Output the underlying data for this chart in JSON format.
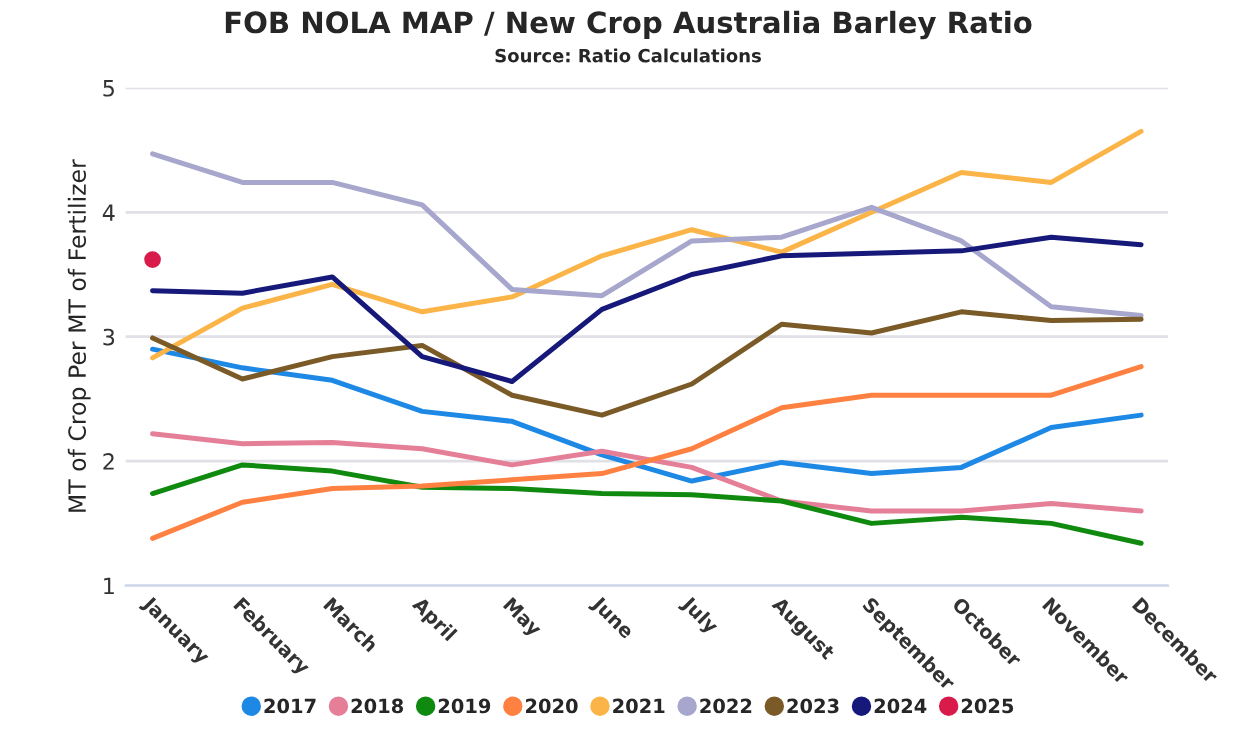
{
  "chart_data": {
    "type": "line",
    "title": "FOB NOLA MAP / New Crop Australia Barley Ratio",
    "subtitle": "Source: Ratio Calculations",
    "ylabel": "MT of Crop Per MT of Fertilizer",
    "categories": [
      "January",
      "February",
      "March",
      "April",
      "May",
      "June",
      "July",
      "August",
      "September",
      "October",
      "November",
      "December"
    ],
    "series": [
      {
        "name": "2017",
        "color": "#1e88e5",
        "values": [
          2.9,
          2.75,
          2.65,
          2.4,
          2.32,
          2.05,
          1.84,
          1.99,
          1.9,
          1.95,
          2.27,
          2.37
        ]
      },
      {
        "name": "2018",
        "color": "#e57f98",
        "values": [
          2.22,
          2.14,
          2.15,
          2.1,
          1.97,
          2.08,
          1.95,
          1.68,
          1.6,
          1.6,
          1.66,
          1.6
        ]
      },
      {
        "name": "2019",
        "color": "#0f8a0f",
        "values": [
          1.74,
          1.97,
          1.92,
          1.79,
          1.78,
          1.74,
          1.73,
          1.68,
          1.5,
          1.55,
          1.5,
          1.34
        ]
      },
      {
        "name": "2020",
        "color": "#ff8142",
        "values": [
          1.38,
          1.67,
          1.78,
          1.8,
          1.85,
          1.9,
          2.1,
          2.43,
          2.53,
          2.53,
          2.53,
          2.76
        ]
      },
      {
        "name": "2021",
        "color": "#fbb448",
        "values": [
          2.83,
          3.23,
          3.42,
          3.2,
          3.32,
          3.65,
          3.86,
          3.68,
          4.0,
          4.32,
          4.24,
          4.65
        ]
      },
      {
        "name": "2022",
        "color": "#a7a6cc",
        "values": [
          4.47,
          4.24,
          4.24,
          4.06,
          3.38,
          3.33,
          3.77,
          3.8,
          4.04,
          3.77,
          3.24,
          3.17
        ]
      },
      {
        "name": "2023",
        "color": "#7a5a27",
        "values": [
          2.99,
          2.66,
          2.84,
          2.93,
          2.53,
          2.37,
          2.62,
          3.1,
          3.03,
          3.2,
          3.13,
          3.14
        ]
      },
      {
        "name": "2024",
        "color": "#16197a",
        "values": [
          3.37,
          3.35,
          3.48,
          2.84,
          2.64,
          3.22,
          3.5,
          3.65,
          3.67,
          3.69,
          3.8,
          3.74
        ]
      },
      {
        "name": "2025",
        "color": "#d81b4a",
        "type": "scatter",
        "marker": "circle",
        "values": [
          3.62,
          null,
          null,
          null,
          null,
          null,
          null,
          null,
          null,
          null,
          null,
          null
        ]
      }
    ],
    "ylim": [
      1,
      5
    ],
    "yticks": [
      1,
      2,
      3,
      4,
      5
    ],
    "grid": "y",
    "legend": "bottom",
    "line_style": "solid"
  }
}
